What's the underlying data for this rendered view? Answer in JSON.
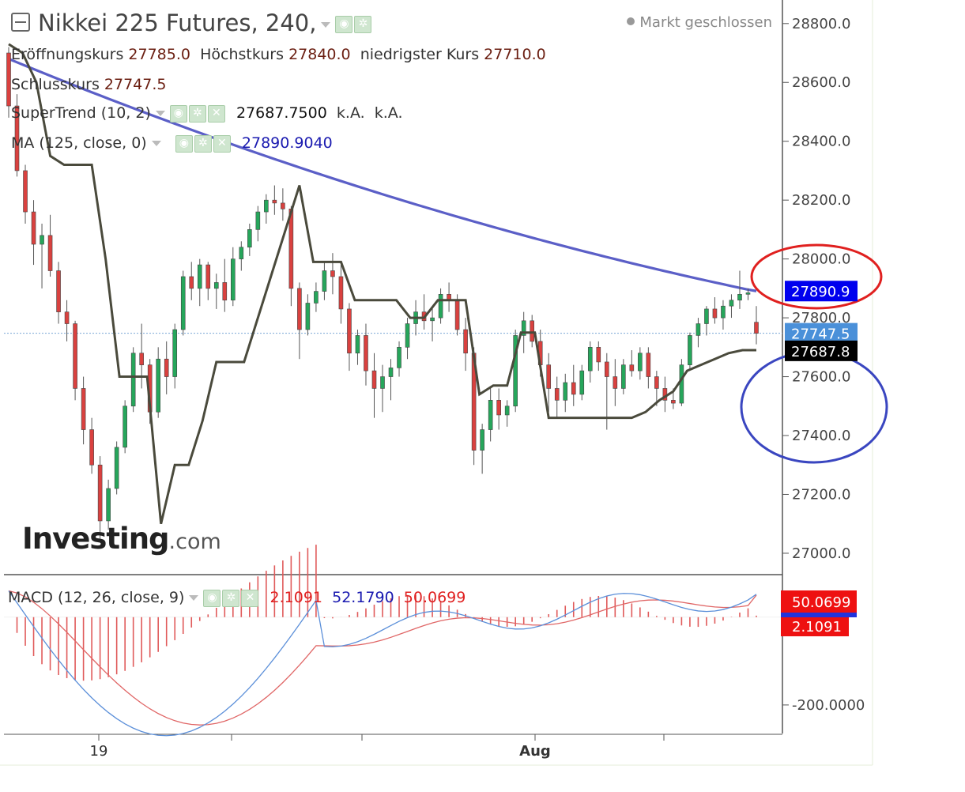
{
  "header": {
    "title": "Nikkei 225 Futures, 240,",
    "status": "Markt geschlossen",
    "ohlc": [
      {
        "label": "Eröffnungskurs",
        "value": "27785.0"
      },
      {
        "label": "Höchstkurs",
        "value": "27840.0"
      },
      {
        "label": "niedrigster Kurs",
        "value": "27710.0"
      }
    ],
    "close_label": "Schlusskurs",
    "close_value": "27747.5"
  },
  "indicators": {
    "supertrend": {
      "label": "SuperTrend (10, 2)",
      "value": "27687.7500",
      "extra1": "k.A.",
      "extra2": "k.A."
    },
    "ma": {
      "label": "MA (125, close, 0)",
      "value": "27890.9040"
    },
    "macd": {
      "label": "MACD (12, 26, close, 9)",
      "hist": "2.1091",
      "macd": "52.1790",
      "signal": "50.0699"
    }
  },
  "logo": {
    "text": "Investing",
    "suffix": ".com"
  },
  "colors": {
    "up": "#26a65b",
    "down": "#d9413f",
    "ma": "#5b5fc7",
    "supertrend": "#4a4a3c",
    "macd_line": "#5b8fd9",
    "signal_line": "#e06666",
    "hist": "#e05a5a",
    "ma_badge": "#0000ee",
    "price_badge": "#4a90d9",
    "st_badge": "#000000",
    "macd_badge": "#ee1111",
    "red_circle": "#e0201f",
    "blue_circle": "#3a46c0"
  },
  "chart_data": {
    "type": "candlestick",
    "price_axis": {
      "range": [
        26930,
        28880
      ],
      "ticks": [
        28800.0,
        28600.0,
        28400.0,
        28200.0,
        28000.0,
        27800.0,
        27600.0,
        27400.0,
        27200.0,
        27000.0
      ],
      "tick_labels": [
        "28800.0",
        "28600.0",
        "28400.0",
        "28200.0",
        "28000.0",
        "27800.0",
        "27600.0",
        "27400.0",
        "27200.0",
        "27000.0"
      ]
    },
    "macd_axis": {
      "range": [
        -265,
        95
      ],
      "ticks": [
        -200.0
      ],
      "tick_labels": [
        "-200.0000"
      ]
    },
    "time_labels": [
      {
        "label": "19",
        "index": 14
      },
      {
        "label": "Aug",
        "index": 84
      }
    ],
    "last": {
      "open": 27785.0,
      "high": 27840.0,
      "low": 27710.0,
      "close": 27747.5
    },
    "badges": {
      "ma": "27890.9",
      "close": "27747.5",
      "supertrend": "27687.8",
      "macd": "50.0699",
      "hist": "2.1091"
    },
    "candles": [
      [
        28700,
        28720,
        28480,
        28520
      ],
      [
        28520,
        28560,
        28280,
        28300
      ],
      [
        28300,
        28320,
        28120,
        28160
      ],
      [
        28160,
        28200,
        27980,
        28050
      ],
      [
        28050,
        28120,
        27900,
        28080
      ],
      [
        28080,
        28150,
        27940,
        27960
      ],
      [
        27960,
        27990,
        27780,
        27820
      ],
      [
        27820,
        27860,
        27720,
        27780
      ],
      [
        27780,
        27790,
        27520,
        27560
      ],
      [
        27560,
        27600,
        27370,
        27420
      ],
      [
        27420,
        27460,
        27270,
        27300
      ],
      [
        27300,
        27330,
        27050,
        27110
      ],
      [
        27110,
        27250,
        27080,
        27220
      ],
      [
        27220,
        27380,
        27200,
        27360
      ],
      [
        27360,
        27520,
        27340,
        27500
      ],
      [
        27500,
        27700,
        27480,
        27680
      ],
      [
        27680,
        27780,
        27560,
        27640
      ],
      [
        27640,
        27660,
        27440,
        27480
      ],
      [
        27480,
        27700,
        27460,
        27660
      ],
      [
        27660,
        27720,
        27540,
        27600
      ],
      [
        27600,
        27780,
        27560,
        27760
      ],
      [
        27760,
        27960,
        27740,
        27940
      ],
      [
        27940,
        27990,
        27860,
        27900
      ],
      [
        27900,
        28000,
        27840,
        27980
      ],
      [
        27980,
        27990,
        27860,
        27900
      ],
      [
        27900,
        27950,
        27830,
        27920
      ],
      [
        27920,
        28000,
        27820,
        27860
      ],
      [
        27860,
        28040,
        27840,
        28000
      ],
      [
        28000,
        28060,
        27960,
        28040
      ],
      [
        28040,
        28120,
        28010,
        28100
      ],
      [
        28100,
        28180,
        28060,
        28160
      ],
      [
        28160,
        28220,
        28120,
        28200
      ],
      [
        28200,
        28250,
        28150,
        28190
      ],
      [
        28190,
        28240,
        28130,
        28170
      ],
      [
        28170,
        28180,
        27840,
        27900
      ],
      [
        27900,
        27920,
        27660,
        27760
      ],
      [
        27760,
        27880,
        27740,
        27850
      ],
      [
        27850,
        27920,
        27820,
        27890
      ],
      [
        27890,
        27990,
        27860,
        27960
      ],
      [
        27960,
        28020,
        27880,
        27940
      ],
      [
        27940,
        27980,
        27780,
        27830
      ],
      [
        27830,
        27850,
        27620,
        27680
      ],
      [
        27680,
        27760,
        27640,
        27740
      ],
      [
        27740,
        27780,
        27570,
        27620
      ],
      [
        27620,
        27680,
        27460,
        27560
      ],
      [
        27560,
        27640,
        27480,
        27600
      ],
      [
        27600,
        27660,
        27520,
        27630
      ],
      [
        27630,
        27720,
        27600,
        27700
      ],
      [
        27700,
        27800,
        27660,
        27780
      ],
      [
        27780,
        27860,
        27740,
        27820
      ],
      [
        27820,
        27880,
        27760,
        27790
      ],
      [
        27790,
        27840,
        27720,
        27800
      ],
      [
        27800,
        27900,
        27780,
        27880
      ],
      [
        27880,
        27920,
        27820,
        27860
      ],
      [
        27860,
        27880,
        27740,
        27760
      ],
      [
        27760,
        27800,
        27620,
        27680
      ],
      [
        27680,
        27700,
        27300,
        27350
      ],
      [
        27350,
        27440,
        27270,
        27420
      ],
      [
        27420,
        27560,
        27380,
        27520
      ],
      [
        27520,
        27560,
        27420,
        27470
      ],
      [
        27470,
        27520,
        27430,
        27500
      ],
      [
        27500,
        27760,
        27480,
        27740
      ],
      [
        27740,
        27820,
        27680,
        27790
      ],
      [
        27790,
        27810,
        27700,
        27720
      ],
      [
        27720,
        27760,
        27600,
        27640
      ],
      [
        27640,
        27680,
        27480,
        27560
      ],
      [
        27560,
        27600,
        27460,
        27520
      ],
      [
        27520,
        27610,
        27480,
        27580
      ],
      [
        27580,
        27640,
        27500,
        27540
      ],
      [
        27540,
        27640,
        27520,
        27620
      ],
      [
        27620,
        27720,
        27580,
        27700
      ],
      [
        27700,
        27720,
        27620,
        27650
      ],
      [
        27650,
        27680,
        27420,
        27600
      ],
      [
        27600,
        27660,
        27500,
        27560
      ],
      [
        27560,
        27660,
        27540,
        27640
      ],
      [
        27640,
        27690,
        27600,
        27620
      ],
      [
        27620,
        27700,
        27590,
        27680
      ],
      [
        27680,
        27700,
        27560,
        27600
      ],
      [
        27600,
        27620,
        27500,
        27560
      ],
      [
        27560,
        27600,
        27480,
        27520
      ],
      [
        27520,
        27560,
        27490,
        27510
      ],
      [
        27510,
        27660,
        27500,
        27640
      ],
      [
        27640,
        27750,
        27620,
        27740
      ],
      [
        27740,
        27800,
        27700,
        27780
      ],
      [
        27780,
        27840,
        27740,
        27830
      ],
      [
        27830,
        27870,
        27780,
        27800
      ],
      [
        27800,
        27860,
        27760,
        27840
      ],
      [
        27840,
        27880,
        27800,
        27860
      ],
      [
        27860,
        27960,
        27830,
        27880
      ],
      [
        27880,
        27900,
        27860,
        27885
      ],
      [
        27785,
        27840,
        27710,
        27747.5
      ]
    ],
    "supertrend": [
      28730,
      28700,
      28600,
      28350,
      28320,
      28320,
      28320,
      28000,
      27600,
      27600,
      27600,
      27100,
      27300,
      27300,
      27450,
      27650,
      27650,
      27650,
      27800,
      27950,
      28100,
      28250,
      27990,
      27990,
      27990,
      27860,
      27860,
      27860,
      27860,
      27800,
      27800,
      27860,
      27860,
      27860,
      27540,
      27570,
      27570,
      27750,
      27750,
      27460,
      27460,
      27460,
      27460,
      27460,
      27460,
      27460,
      27480,
      27520,
      27550,
      27620,
      27640,
      27660,
      27680,
      27690,
      27690
    ]
  }
}
